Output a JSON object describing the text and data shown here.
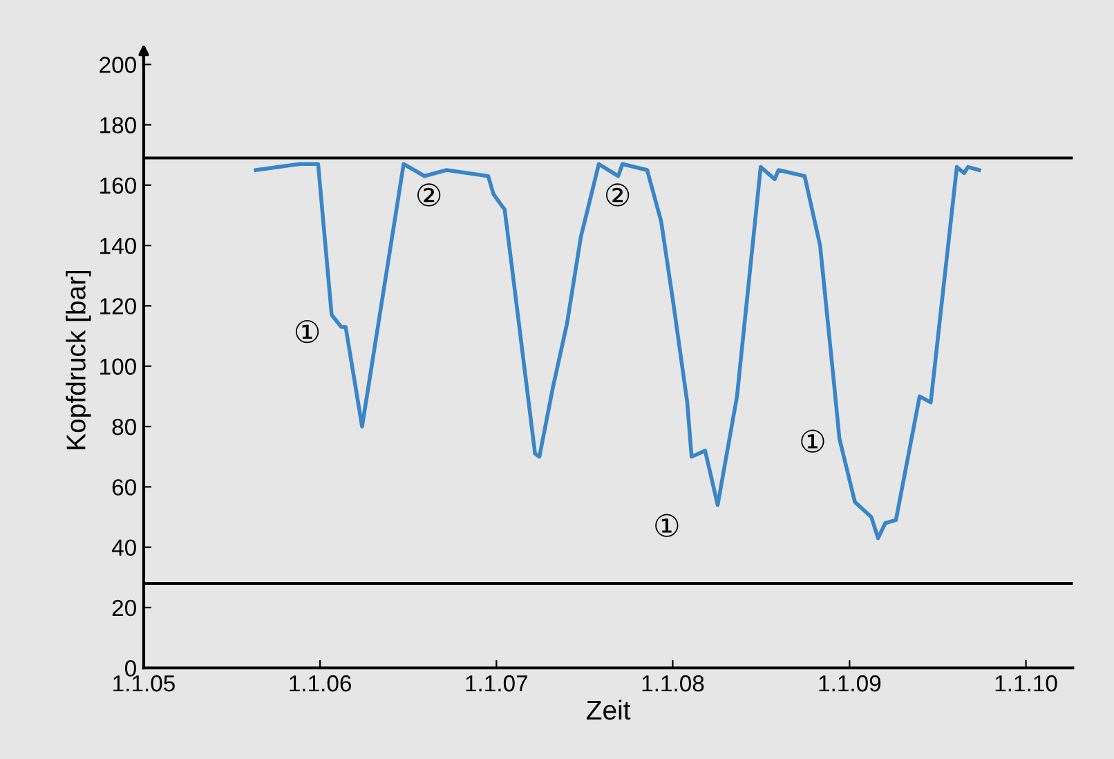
{
  "chart_data": {
    "type": "line",
    "xlabel": "Zeit",
    "ylabel": "Kopfdruck [bar]",
    "xlim": [
      "2005-01-01",
      "2010-04-08"
    ],
    "ylim": [
      0,
      204
    ],
    "xticks": [
      {
        "value": "2005-01-01",
        "label": "1.1.05"
      },
      {
        "value": "2006-01-01",
        "label": "1.1.06"
      },
      {
        "value": "2007-01-01",
        "label": "1.1.07"
      },
      {
        "value": "2008-01-01",
        "label": "1.1.08"
      },
      {
        "value": "2009-01-01",
        "label": "1.1.09"
      },
      {
        "value": "2010-01-01",
        "label": "1.1.10"
      }
    ],
    "yticks": [
      0,
      20,
      40,
      60,
      80,
      100,
      120,
      140,
      160,
      180,
      200
    ],
    "grid": false,
    "marker": "none",
    "line_style": "solid",
    "x": [
      "2005-08-21",
      "2005-11-20",
      "2005-12-28",
      "2006-01-25",
      "2006-02-14",
      "2006-02-23",
      "2006-03-29",
      "2006-06-23",
      "2006-08-05",
      "2006-09-20",
      "2006-12-15",
      "2006-12-26",
      "2007-01-13",
      "2007-01-18",
      "2007-02-02",
      "2007-03-22",
      "2007-03-31",
      "2007-04-28",
      "2007-05-27",
      "2007-06-25",
      "2007-07-09",
      "2007-08-01",
      "2007-09-10",
      "2007-09-19",
      "2007-11-09",
      "2007-12-08",
      "2008-01-03",
      "2008-01-31",
      "2008-02-09",
      "2008-03-08",
      "2008-04-03",
      "2008-05-13",
      "2008-07-01",
      "2008-07-30",
      "2008-08-07",
      "2008-09-30",
      "2008-11-01",
      "2008-11-30",
      "2008-12-11",
      "2009-01-12",
      "2009-02-15",
      "2009-03-01",
      "2009-03-16",
      "2009-04-07",
      "2009-05-26",
      "2009-06-18",
      "2009-08-11",
      "2009-08-26",
      "2009-09-03",
      "2009-09-26"
    ],
    "series": [
      {
        "color": "#3a85c8",
        "values": [
          165,
          167,
          167,
          117,
          113,
          113,
          80,
          167,
          163,
          165,
          163,
          157,
          153,
          152,
          133,
          71,
          70,
          93,
          114,
          143,
          152,
          167,
          163,
          167,
          165,
          148,
          120,
          88,
          70,
          72,
          54,
          90,
          166,
          162,
          165,
          163,
          140,
          94,
          76,
          55,
          50,
          43,
          48,
          49,
          90,
          88,
          166,
          164,
          166,
          165
        ]
      }
    ],
    "ref_lines": [
      {
        "axis": "y",
        "value": 169,
        "color": "#000000"
      },
      {
        "axis": "y",
        "value": 28,
        "color": "#000000"
      }
    ],
    "annotations": [
      "①",
      "②",
      "②",
      "①",
      "①"
    ]
  }
}
